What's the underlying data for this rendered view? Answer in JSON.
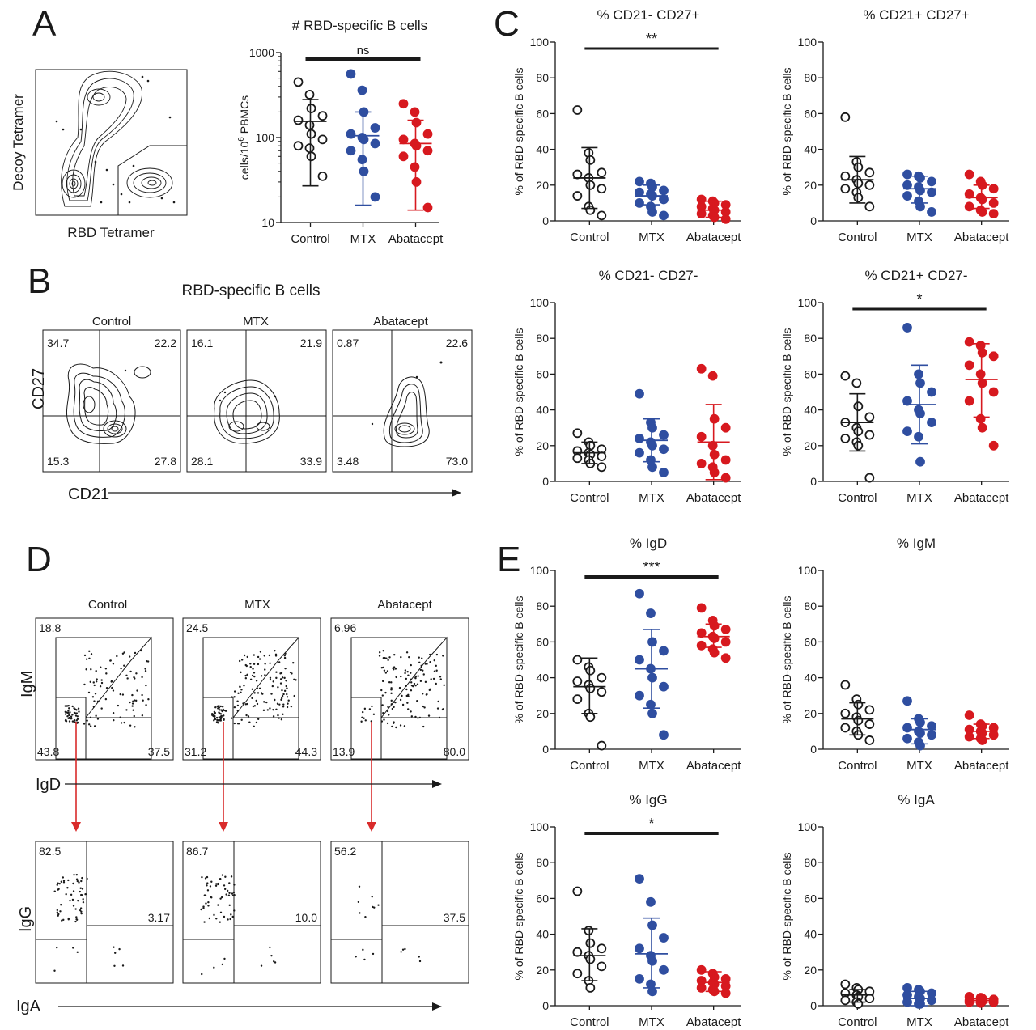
{
  "panels": {
    "A": "A",
    "B": "B",
    "C": "C",
    "D": "D",
    "E": "E"
  },
  "colors": {
    "control": "#1a1a1a",
    "mtx": "#2f4ea0",
    "abatacept": "#d7191f",
    "arrow": "#d92b2b"
  },
  "flow": {
    "A": {
      "xlabel": "RBD Tetramer",
      "ylabel": "Decoy Tetramer"
    },
    "B": {
      "title": "RBD-specific B cells",
      "xlabel": "CD21",
      "ylabel": "CD27",
      "plots": [
        {
          "label": "Control",
          "q": [
            "34.7",
            "22.2",
            "15.3",
            "27.8"
          ]
        },
        {
          "label": "MTX",
          "q": [
            "16.1",
            "21.9",
            "28.1",
            "33.9"
          ]
        },
        {
          "label": "Abatacept",
          "q": [
            "0.87",
            "22.6",
            "3.48",
            "73.0"
          ]
        }
      ]
    },
    "D": {
      "xlabel_top": "IgD",
      "ylabel_top": "IgM",
      "xlabel_bottom": "IgA",
      "ylabel_bottom": "IgG",
      "top": [
        {
          "label": "Control",
          "tl": "18.8",
          "bl": "43.8",
          "br": "37.5"
        },
        {
          "label": "MTX",
          "tl": "24.5",
          "bl": "31.2",
          "br": "44.3"
        },
        {
          "label": "Abatacept",
          "tl": "6.96",
          "bl": "13.9",
          "br": "80.0"
        }
      ],
      "bottom": [
        {
          "tl": "82.5",
          "br": "3.17"
        },
        {
          "tl": "86.7",
          "br": "10.0"
        },
        {
          "tl": "56.2",
          "br": "37.5"
        }
      ]
    }
  },
  "chart_data": [
    {
      "type": "scatter",
      "panel": "A",
      "title": "# RBD-specific B cells",
      "ylabel": "cells/10^6 PBMCs",
      "yscale": "log",
      "ylim": [
        10,
        1000
      ],
      "yticks": [
        10,
        100,
        1000
      ],
      "yticklabels": [
        "10",
        "100",
        "1000"
      ],
      "categories": [
        "Control",
        "MTX",
        "Abatacept"
      ],
      "sig": {
        "text": "ns",
        "from": 0,
        "to": 2
      },
      "series": [
        {
          "category": "Control",
          "values": [
            450,
            320,
            220,
            180,
            160,
            140,
            110,
            95,
            80,
            75,
            60,
            35
          ],
          "mean": 155,
          "sd_range": [
            27,
            280
          ]
        },
        {
          "category": "MTX",
          "values": [
            560,
            360,
            200,
            130,
            110,
            100,
            95,
            85,
            70,
            55,
            40,
            20
          ],
          "mean": 105,
          "sd_range": [
            16,
            200
          ]
        },
        {
          "category": "Abatacept",
          "values": [
            250,
            200,
            150,
            110,
            95,
            85,
            80,
            70,
            60,
            45,
            30,
            15
          ],
          "mean": 85,
          "sd_range": [
            14,
            160
          ]
        }
      ]
    },
    {
      "type": "scatter",
      "panel": "C",
      "title": "% CD21- CD27+",
      "ylabel": "% of RBD-specific B cells",
      "ylim": [
        0,
        100
      ],
      "yticks": [
        0,
        20,
        40,
        60,
        80,
        100
      ],
      "categories": [
        "Control",
        "MTX",
        "Abatacept"
      ],
      "sig": {
        "text": "**",
        "from": 0,
        "to": 2
      },
      "series": [
        {
          "category": "Control",
          "values": [
            62,
            38,
            34,
            27,
            26,
            24,
            20,
            18,
            14,
            8,
            6,
            3
          ],
          "mean": 24,
          "sd_range": [
            7,
            41
          ]
        },
        {
          "category": "MTX",
          "values": [
            22,
            21,
            19,
            17,
            16,
            15,
            14,
            12,
            10,
            8,
            5,
            3
          ],
          "mean": 14,
          "sd_range": [
            9,
            20
          ]
        },
        {
          "category": "Abatacept",
          "values": [
            12,
            11,
            10,
            9,
            8,
            7,
            6,
            5,
            4,
            3,
            2,
            1
          ],
          "mean": 6,
          "sd_range": [
            2,
            11
          ]
        }
      ]
    },
    {
      "type": "scatter",
      "panel": "C",
      "title": "% CD21+ CD27+",
      "ylabel": "% of RBD-specific B cells",
      "ylim": [
        0,
        100
      ],
      "yticks": [
        0,
        20,
        40,
        60,
        80,
        100
      ],
      "categories": [
        "Control",
        "MTX",
        "Abatacept"
      ],
      "series": [
        {
          "category": "Control",
          "values": [
            58,
            33,
            30,
            27,
            25,
            23,
            21,
            20,
            18,
            16,
            13,
            8
          ],
          "mean": 23,
          "sd_range": [
            10,
            36
          ]
        },
        {
          "category": "MTX",
          "values": [
            26,
            25,
            24,
            22,
            20,
            19,
            17,
            16,
            14,
            11,
            8,
            5
          ],
          "mean": 18,
          "sd_range": [
            10,
            25
          ]
        },
        {
          "category": "Abatacept",
          "values": [
            26,
            22,
            20,
            18,
            15,
            13,
            12,
            10,
            8,
            6,
            5,
            4
          ],
          "mean": 13,
          "sd_range": [
            7,
            20
          ]
        }
      ]
    },
    {
      "type": "scatter",
      "panel": "C",
      "title": "% CD21- CD27-",
      "ylabel": "% of RBD-specific B cells",
      "ylim": [
        0,
        100
      ],
      "yticks": [
        0,
        20,
        40,
        60,
        80,
        100
      ],
      "categories": [
        "Control",
        "MTX",
        "Abatacept"
      ],
      "series": [
        {
          "category": "Control",
          "values": [
            27,
            22,
            20,
            18,
            17,
            16,
            15,
            14,
            13,
            12,
            10,
            8
          ],
          "mean": 16,
          "sd_range": [
            10,
            22
          ]
        },
        {
          "category": "MTX",
          "values": [
            49,
            33,
            30,
            26,
            24,
            22,
            20,
            18,
            16,
            12,
            8,
            5
          ],
          "mean": 23,
          "sd_range": [
            11,
            35
          ]
        },
        {
          "category": "Abatacept",
          "values": [
            63,
            59,
            35,
            30,
            25,
            20,
            15,
            12,
            10,
            8,
            5,
            2
          ],
          "mean": 22,
          "sd_range": [
            1,
            43
          ]
        }
      ]
    },
    {
      "type": "scatter",
      "panel": "C",
      "title": "% CD21+ CD27-",
      "ylabel": "% of RBD-specific B cells",
      "ylim": [
        0,
        100
      ],
      "yticks": [
        0,
        20,
        40,
        60,
        80,
        100
      ],
      "categories": [
        "Control",
        "MTX",
        "Abatacept"
      ],
      "sig": {
        "text": "*",
        "from": 0,
        "to": 2
      },
      "series": [
        {
          "category": "Control",
          "values": [
            59,
            55,
            42,
            36,
            33,
            30,
            28,
            26,
            24,
            22,
            20,
            2
          ],
          "mean": 33,
          "sd_range": [
            17,
            49
          ]
        },
        {
          "category": "MTX",
          "values": [
            86,
            60,
            55,
            50,
            45,
            40,
            38,
            33,
            28,
            25,
            11
          ],
          "mean": 43,
          "sd_range": [
            21,
            65
          ]
        },
        {
          "category": "Abatacept",
          "values": [
            78,
            76,
            72,
            70,
            65,
            60,
            55,
            50,
            45,
            35,
            30,
            20
          ],
          "mean": 57,
          "sd_range": [
            36,
            77
          ]
        }
      ]
    },
    {
      "type": "scatter",
      "panel": "E",
      "title": "% IgD",
      "ylabel": "% of RBD-specific B cells",
      "ylim": [
        0,
        100
      ],
      "yticks": [
        0,
        20,
        40,
        60,
        80,
        100
      ],
      "categories": [
        "Control",
        "MTX",
        "Abatacept"
      ],
      "sig": {
        "text": "***",
        "from": 0,
        "to": 2
      },
      "series": [
        {
          "category": "Control",
          "values": [
            50,
            46,
            44,
            40,
            38,
            36,
            34,
            32,
            28,
            20,
            18,
            2
          ],
          "mean": 35,
          "sd_range": [
            20,
            51
          ]
        },
        {
          "category": "MTX",
          "values": [
            87,
            76,
            60,
            55,
            50,
            45,
            40,
            35,
            30,
            25,
            20,
            8
          ],
          "mean": 45,
          "sd_range": [
            23,
            67
          ]
        },
        {
          "category": "Abatacept",
          "values": [
            79,
            72,
            69,
            67,
            65,
            63,
            62,
            60,
            58,
            56,
            54,
            51
          ],
          "mean": 63,
          "sd_range": [
            57,
            70
          ]
        }
      ]
    },
    {
      "type": "scatter",
      "panel": "E",
      "title": "% IgM",
      "ylabel": "% of RBD-specific B cells",
      "ylim": [
        0,
        100
      ],
      "yticks": [
        0,
        20,
        40,
        60,
        80,
        100
      ],
      "categories": [
        "Control",
        "MTX",
        "Abatacept"
      ],
      "series": [
        {
          "category": "Control",
          "values": [
            36,
            28,
            25,
            22,
            20,
            18,
            16,
            14,
            12,
            10,
            8,
            5
          ],
          "mean": 17,
          "sd_range": [
            8,
            26
          ]
        },
        {
          "category": "MTX",
          "values": [
            27,
            17,
            15,
            13,
            12,
            10,
            9,
            8,
            6,
            4,
            2
          ],
          "mean": 11,
          "sd_range": [
            3,
            17
          ]
        },
        {
          "category": "Abatacept",
          "values": [
            19,
            14,
            13,
            12,
            11,
            10,
            9,
            8,
            7,
            6,
            5
          ],
          "mean": 10,
          "sd_range": [
            6,
            14
          ]
        }
      ]
    },
    {
      "type": "scatter",
      "panel": "E",
      "title": "% IgG",
      "ylabel": "% of RBD-specific B cells",
      "ylim": [
        0,
        100
      ],
      "yticks": [
        0,
        20,
        40,
        60,
        80,
        100
      ],
      "categories": [
        "Control",
        "MTX",
        "Abatacept"
      ],
      "sig": {
        "text": "*",
        "from": 0,
        "to": 2
      },
      "series": [
        {
          "category": "Control",
          "values": [
            64,
            42,
            35,
            32,
            30,
            28,
            26,
            22,
            18,
            14,
            10
          ],
          "mean": 28,
          "sd_range": [
            14,
            43
          ]
        },
        {
          "category": "MTX",
          "values": [
            71,
            58,
            45,
            38,
            32,
            28,
            25,
            20,
            15,
            12,
            8
          ],
          "mean": 29,
          "sd_range": [
            10,
            49
          ]
        },
        {
          "category": "Abatacept",
          "values": [
            20,
            18,
            16,
            15,
            14,
            13,
            12,
            11,
            10,
            9,
            8,
            7
          ],
          "mean": 13,
          "sd_range": [
            8,
            19
          ]
        }
      ]
    },
    {
      "type": "scatter",
      "panel": "E",
      "title": "% IgA",
      "ylabel": "% of RBD-specific B cells",
      "ylim": [
        0,
        100
      ],
      "yticks": [
        0,
        20,
        40,
        60,
        80,
        100
      ],
      "categories": [
        "Control",
        "MTX",
        "Abatacept"
      ],
      "series": [
        {
          "category": "Control",
          "values": [
            12,
            10,
            9,
            8,
            7,
            6,
            5,
            4,
            3,
            2,
            1
          ],
          "mean": 6,
          "sd_range": [
            2,
            9
          ]
        },
        {
          "category": "MTX",
          "values": [
            10,
            9,
            8,
            7,
            6,
            5,
            4,
            3,
            2,
            1,
            1
          ],
          "mean": 4,
          "sd_range": [
            0,
            8
          ]
        },
        {
          "category": "Abatacept",
          "values": [
            5,
            4.5,
            4,
            3.5,
            3,
            3,
            2.5,
            2,
            2,
            1.5
          ],
          "mean": 3,
          "sd_range": [
            2,
            4
          ]
        }
      ]
    }
  ]
}
